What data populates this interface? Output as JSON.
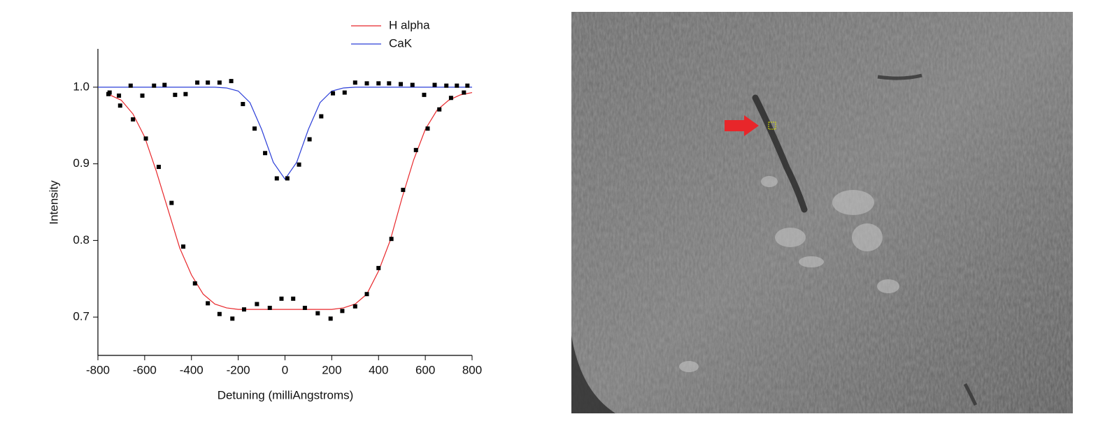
{
  "chart_data": {
    "type": "line",
    "xlabel": "Detuning (milliAngstroms)",
    "ylabel": "Intensity",
    "xlim": [
      -800,
      800
    ],
    "ylim": [
      0.65,
      1.05
    ],
    "xticks": [
      -800,
      -600,
      -400,
      -200,
      0,
      200,
      400,
      600,
      800
    ],
    "yticks": [
      0.7,
      0.8,
      0.9,
      {
        "value": 1,
        "label": "1.0"
      }
    ],
    "legend": "upper right",
    "marker_color": "#000000",
    "series": [
      {
        "name": "H alpha",
        "color": "#e8262a",
        "x": [
          -750,
          -700,
          -650,
          -600,
          -550,
          -500,
          -450,
          -400,
          -350,
          -300,
          -250,
          -200,
          -150,
          -100,
          -50,
          0,
          50,
          100,
          150,
          200,
          250,
          300,
          350,
          400,
          450,
          500,
          550,
          600,
          650,
          700,
          750,
          800
        ],
        "values": [
          0.99,
          0.983,
          0.965,
          0.935,
          0.89,
          0.84,
          0.79,
          0.755,
          0.73,
          0.717,
          0.712,
          0.71,
          0.71,
          0.71,
          0.71,
          0.71,
          0.71,
          0.71,
          0.71,
          0.71,
          0.712,
          0.717,
          0.73,
          0.76,
          0.8,
          0.855,
          0.905,
          0.945,
          0.97,
          0.983,
          0.99,
          0.993
        ],
        "measured": {
          "x": [
            -755,
            -705,
            -650,
            -595,
            -540,
            -485,
            -435,
            -385,
            -330,
            -280,
            -225,
            -175,
            -120,
            -65,
            -15,
            35,
            85,
            140,
            195,
            245,
            300,
            350,
            400,
            455,
            505,
            560,
            610,
            660,
            710,
            765
          ],
          "values": [
            0.991,
            0.976,
            0.958,
            0.933,
            0.896,
            0.849,
            0.792,
            0.744,
            0.718,
            0.704,
            0.698,
            0.71,
            0.717,
            0.712,
            0.724,
            0.724,
            0.712,
            0.705,
            0.698,
            0.708,
            0.714,
            0.73,
            0.764,
            0.802,
            0.866,
            0.918,
            0.946,
            0.971,
            0.986,
            0.993
          ]
        }
      },
      {
        "name": "CaK",
        "color": "#2b3ed8",
        "x": [
          -800,
          -750,
          -700,
          -650,
          -600,
          -550,
          -500,
          -450,
          -400,
          -350,
          -300,
          -250,
          -200,
          -150,
          -100,
          -50,
          0,
          50,
          100,
          150,
          200,
          250,
          300,
          350,
          400,
          450,
          500,
          550,
          600,
          650,
          700,
          750,
          800
        ],
        "values": [
          1,
          1,
          1,
          1,
          1,
          1,
          1,
          1,
          1,
          1,
          1,
          0.999,
          0.995,
          0.98,
          0.945,
          0.902,
          0.88,
          0.902,
          0.945,
          0.98,
          0.995,
          0.999,
          1,
          1,
          1,
          1,
          1,
          1,
          1,
          1,
          1,
          1,
          1
        ],
        "measured": {
          "x": [
            -750,
            -710,
            -660,
            -610,
            -560,
            -515,
            -470,
            -425,
            -375,
            -330,
            -280,
            -230,
            -180,
            -130,
            -85,
            -35,
            10,
            60,
            105,
            155,
            205,
            255,
            300,
            350,
            400,
            445,
            495,
            545,
            595,
            640,
            690,
            735,
            780
          ],
          "values": [
            0.993,
            0.989,
            1.002,
            0.989,
            1.002,
            1.003,
            0.99,
            0.991,
            1.006,
            1.006,
            1.006,
            1.008,
            0.978,
            0.946,
            0.914,
            0.881,
            0.881,
            0.899,
            0.932,
            0.962,
            0.992,
            0.993,
            1.006,
            1.005,
            1.005,
            1.005,
            1.004,
            1.003,
            0.99,
            1.003,
            1.002,
            1.002,
            1.002
          ]
        }
      }
    ]
  }
}
